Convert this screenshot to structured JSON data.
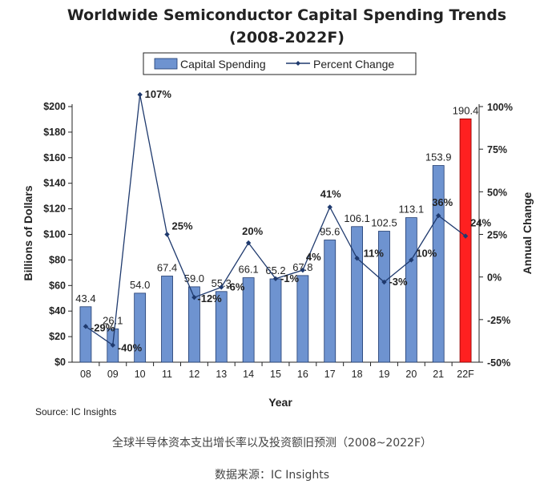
{
  "chart_data": {
    "type": "bar",
    "title": "Worldwide Semiconductor Capital Spending Trends",
    "subtitle": "(2008-2022F)",
    "xlabel": "Year",
    "ylabel": "Billions of Dollars",
    "y2label": "Annual Change",
    "categories": [
      "08",
      "09",
      "10",
      "11",
      "12",
      "13",
      "14",
      "15",
      "16",
      "17",
      "18",
      "19",
      "20",
      "21",
      "22F"
    ],
    "series": [
      {
        "name": "Capital Spending",
        "type": "bar",
        "values": [
          43.4,
          26.1,
          54.0,
          67.4,
          59.0,
          55.3,
          66.1,
          65.2,
          67.8,
          95.6,
          106.1,
          102.5,
          113.1,
          153.9,
          190.4
        ],
        "labels": [
          "43.4",
          "26.1",
          "54.0",
          "67.4",
          "59.0",
          "55.3",
          "66.1",
          "65.2",
          "67.8",
          "95.6",
          "106.1",
          "102.5",
          "113.1",
          "153.9",
          "190.4"
        ],
        "color": "#6E93D0",
        "forecast_color": "#FF2020"
      },
      {
        "name": "Percent Change",
        "type": "line",
        "axis": "right",
        "values": [
          -29,
          -40,
          107,
          25,
          -12,
          -6,
          20,
          -1,
          4,
          41,
          11,
          -3,
          10,
          36,
          24
        ],
        "labels": [
          "-29%",
          "-40%",
          "107%",
          "25%",
          "-12%",
          "-6%",
          "20%",
          "-1%",
          "4%",
          "41%",
          "11%",
          "-3%",
          "10%",
          "36%",
          "24%"
        ],
        "color": "#1F3A6E"
      }
    ],
    "ylim": [
      0,
      200
    ],
    "y2lim": [
      -50,
      100
    ],
    "y_ticks": [
      "$0",
      "$20",
      "$40",
      "$60",
      "$80",
      "$100",
      "$120",
      "$140",
      "$160",
      "$180",
      "$200"
    ],
    "y2_ticks": [
      "-50%",
      "-25%",
      "0%",
      "25%",
      "50%",
      "75%",
      "100%"
    ],
    "legend": "top-center",
    "grid": false,
    "source": "Source: IC Insights"
  },
  "captions": {
    "line1": "全球半导体资本支出增长率以及投资额旧预测（2008~2022F）",
    "line2": "数据来源：IC Insights"
  }
}
